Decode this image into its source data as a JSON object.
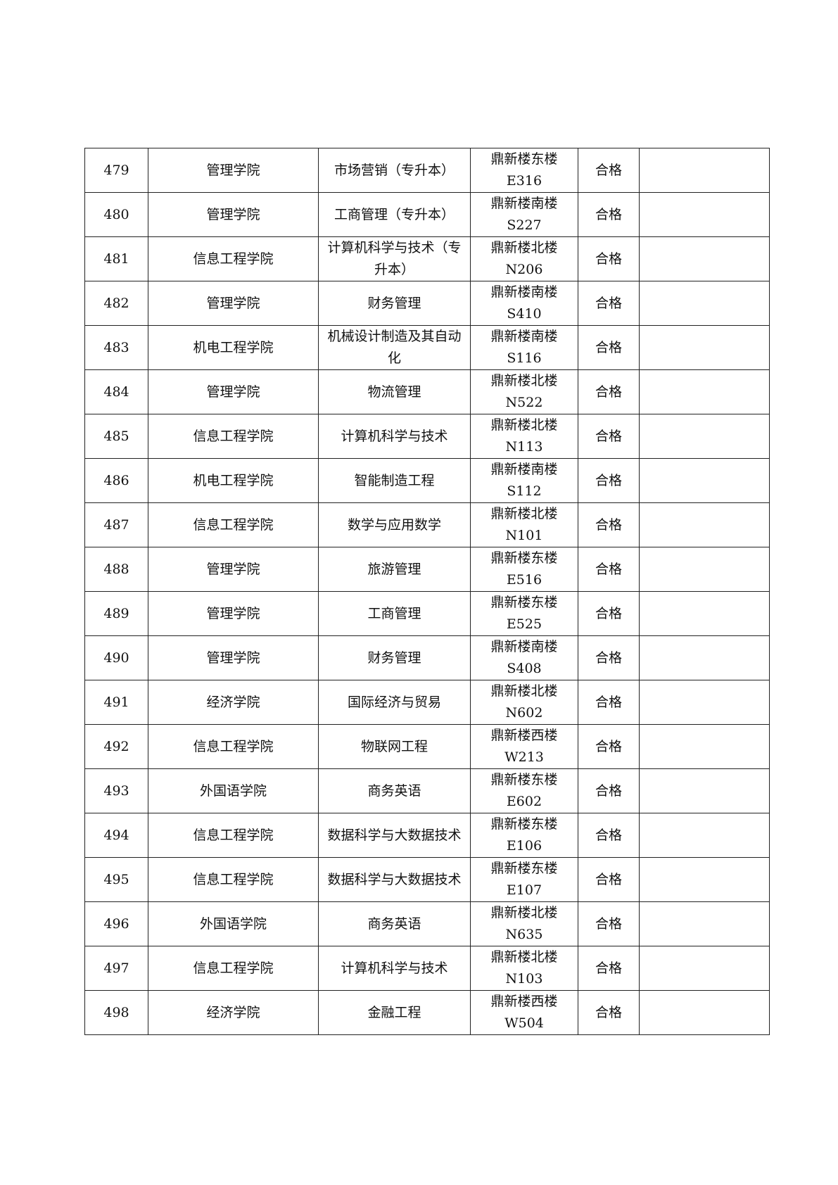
{
  "rows": [
    {
      "no": "479",
      "college": "管理学院",
      "major": "市场营销（专升本）",
      "building": "鼎新楼东楼",
      "room": "E316",
      "result": "合格",
      "note": ""
    },
    {
      "no": "480",
      "college": "管理学院",
      "major": "工商管理（专升本）",
      "building": "鼎新楼南楼",
      "room": "S227",
      "result": "合格",
      "note": ""
    },
    {
      "no": "481",
      "college": "信息工程学院",
      "major": "计算机科学与技术（专升本）",
      "building": "鼎新楼北楼",
      "room": "N206",
      "result": "合格",
      "note": ""
    },
    {
      "no": "482",
      "college": "管理学院",
      "major": "财务管理",
      "building": "鼎新楼南楼",
      "room": "S410",
      "result": "合格",
      "note": ""
    },
    {
      "no": "483",
      "college": "机电工程学院",
      "major": "机械设计制造及其自动化",
      "building": "鼎新楼南楼",
      "room": "S116",
      "result": "合格",
      "note": ""
    },
    {
      "no": "484",
      "college": "管理学院",
      "major": "物流管理",
      "building": "鼎新楼北楼",
      "room": "N522",
      "result": "合格",
      "note": ""
    },
    {
      "no": "485",
      "college": "信息工程学院",
      "major": "计算机科学与技术",
      "building": "鼎新楼北楼",
      "room": "N113",
      "result": "合格",
      "note": ""
    },
    {
      "no": "486",
      "college": "机电工程学院",
      "major": "智能制造工程",
      "building": "鼎新楼南楼",
      "room": "S112",
      "result": "合格",
      "note": ""
    },
    {
      "no": "487",
      "college": "信息工程学院",
      "major": "数学与应用数学",
      "building": "鼎新楼北楼",
      "room": "N101",
      "result": "合格",
      "note": ""
    },
    {
      "no": "488",
      "college": "管理学院",
      "major": "旅游管理",
      "building": "鼎新楼东楼",
      "room": "E516",
      "result": "合格",
      "note": ""
    },
    {
      "no": "489",
      "college": "管理学院",
      "major": "工商管理",
      "building": "鼎新楼东楼",
      "room": "E525",
      "result": "合格",
      "note": ""
    },
    {
      "no": "490",
      "college": "管理学院",
      "major": "财务管理",
      "building": "鼎新楼南楼",
      "room": "S408",
      "result": "合格",
      "note": ""
    },
    {
      "no": "491",
      "college": "经济学院",
      "major": "国际经济与贸易",
      "building": "鼎新楼北楼",
      "room": "N602",
      "result": "合格",
      "note": ""
    },
    {
      "no": "492",
      "college": "信息工程学院",
      "major": "物联网工程",
      "building": "鼎新楼西楼",
      "room": "W213",
      "result": "合格",
      "note": ""
    },
    {
      "no": "493",
      "college": "外国语学院",
      "major": "商务英语",
      "building": "鼎新楼东楼",
      "room": "E602",
      "result": "合格",
      "note": ""
    },
    {
      "no": "494",
      "college": "信息工程学院",
      "major": "数据科学与大数据技术",
      "building": "鼎新楼东楼",
      "room": "E106",
      "result": "合格",
      "note": ""
    },
    {
      "no": "495",
      "college": "信息工程学院",
      "major": "数据科学与大数据技术",
      "building": "鼎新楼东楼",
      "room": "E107",
      "result": "合格",
      "note": ""
    },
    {
      "no": "496",
      "college": "外国语学院",
      "major": "商务英语",
      "building": "鼎新楼北楼",
      "room": "N635",
      "result": "合格",
      "note": ""
    },
    {
      "no": "497",
      "college": "信息工程学院",
      "major": "计算机科学与技术",
      "building": "鼎新楼北楼",
      "room": "N103",
      "result": "合格",
      "note": ""
    },
    {
      "no": "498",
      "college": "经济学院",
      "major": "金融工程",
      "building": "鼎新楼西楼",
      "room": "W504",
      "result": "合格",
      "note": ""
    }
  ]
}
